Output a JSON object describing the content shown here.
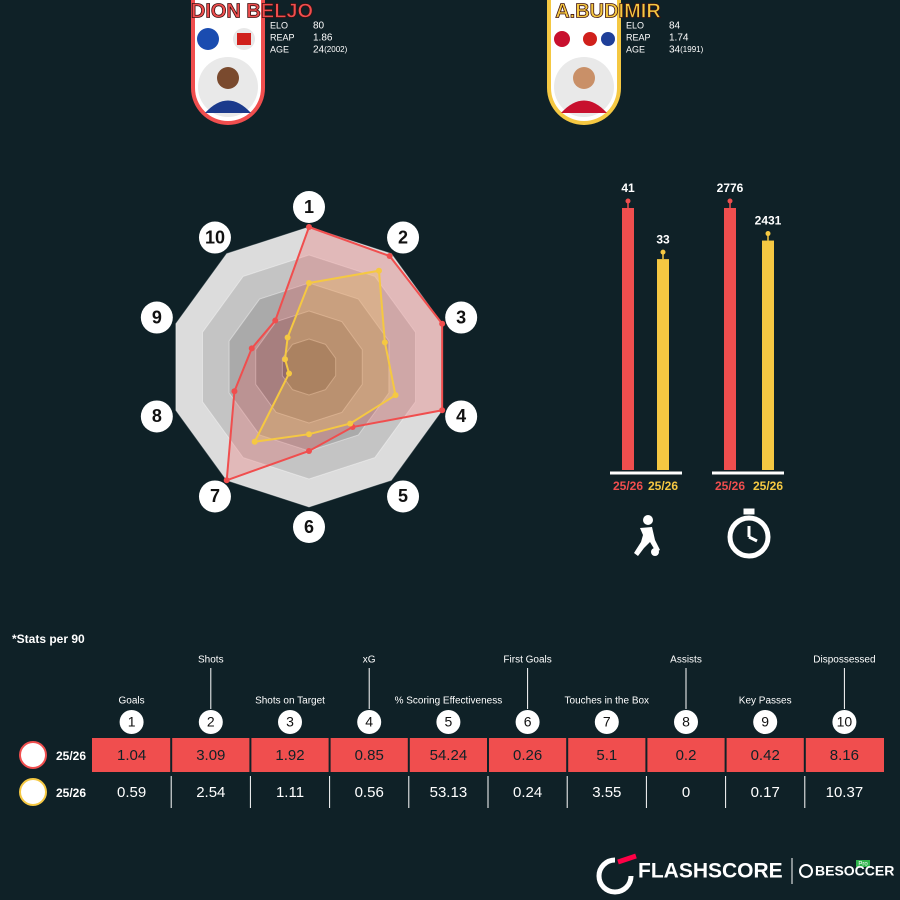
{
  "players": [
    {
      "name": "DION BELJO",
      "color": "#f04e4e",
      "stats": [
        {
          "label": "ELO",
          "value": "80"
        },
        {
          "label": "REAP",
          "value": "1.86"
        },
        {
          "label": "AGE",
          "value": "24",
          "note": "(2002)"
        }
      ]
    },
    {
      "name": "A.BUDIMIR",
      "color": "#f5c842",
      "stats": [
        {
          "label": "ELO",
          "value": "84"
        },
        {
          "label": "REAP",
          "value": "1.74"
        },
        {
          "label": "AGE",
          "value": "34",
          "note": "(1991)"
        }
      ]
    }
  ],
  "chart_data": [
    {
      "type": "radar",
      "categories": [
        "1",
        "2",
        "3",
        "4",
        "5",
        "6",
        "7",
        "8",
        "9",
        "10"
      ],
      "rlim": [
        0,
        100
      ],
      "series": [
        {
          "color": "#f04e4e",
          "values": [
            100,
            98,
            100,
            100,
            53,
            60,
            100,
            56,
            43,
            41
          ]
        },
        {
          "color": "#f5c842",
          "values": [
            60,
            85,
            57,
            65,
            50,
            48,
            66,
            15,
            18,
            26
          ]
        }
      ]
    },
    {
      "type": "bar",
      "categories": [
        "25/26",
        "25/26"
      ],
      "values": [
        41,
        33
      ],
      "colors": [
        "#f04e4e",
        "#f5c842"
      ]
    },
    {
      "type": "bar",
      "categories": [
        "25/26",
        "25/26"
      ],
      "values": [
        2776,
        2431
      ],
      "colors": [
        "#f04e4e",
        "#f5c842"
      ]
    }
  ],
  "table": {
    "note": "*Stats per 90",
    "columns": [
      {
        "number": "1",
        "label": "Goals"
      },
      {
        "number": "2",
        "label": "Shots"
      },
      {
        "number": "3",
        "label": "Shots on Target"
      },
      {
        "number": "4",
        "label": "xG"
      },
      {
        "number": "5",
        "label": "% Scoring Effectiveness"
      },
      {
        "number": "6",
        "label": "First Goals"
      },
      {
        "number": "7",
        "label": "Touches in the Box"
      },
      {
        "number": "8",
        "label": "Assists"
      },
      {
        "number": "9",
        "label": "Key Passes"
      },
      {
        "number": "10",
        "label": "Dispossessed"
      }
    ],
    "rows": [
      {
        "season": "25/26",
        "cells": [
          1.04,
          3.09,
          1.92,
          0.85,
          54.24,
          0.26,
          5.1,
          0.2,
          0.42,
          8.16
        ]
      },
      {
        "season": "25/26",
        "cells": [
          0.59,
          2.54,
          1.11,
          0.56,
          53.13,
          0.24,
          3.55,
          0,
          0.17,
          10.37
        ]
      }
    ]
  },
  "footer": {
    "brand": "FLASHSCORE",
    "partner": "BESOCCER",
    "badge": "Pro"
  }
}
